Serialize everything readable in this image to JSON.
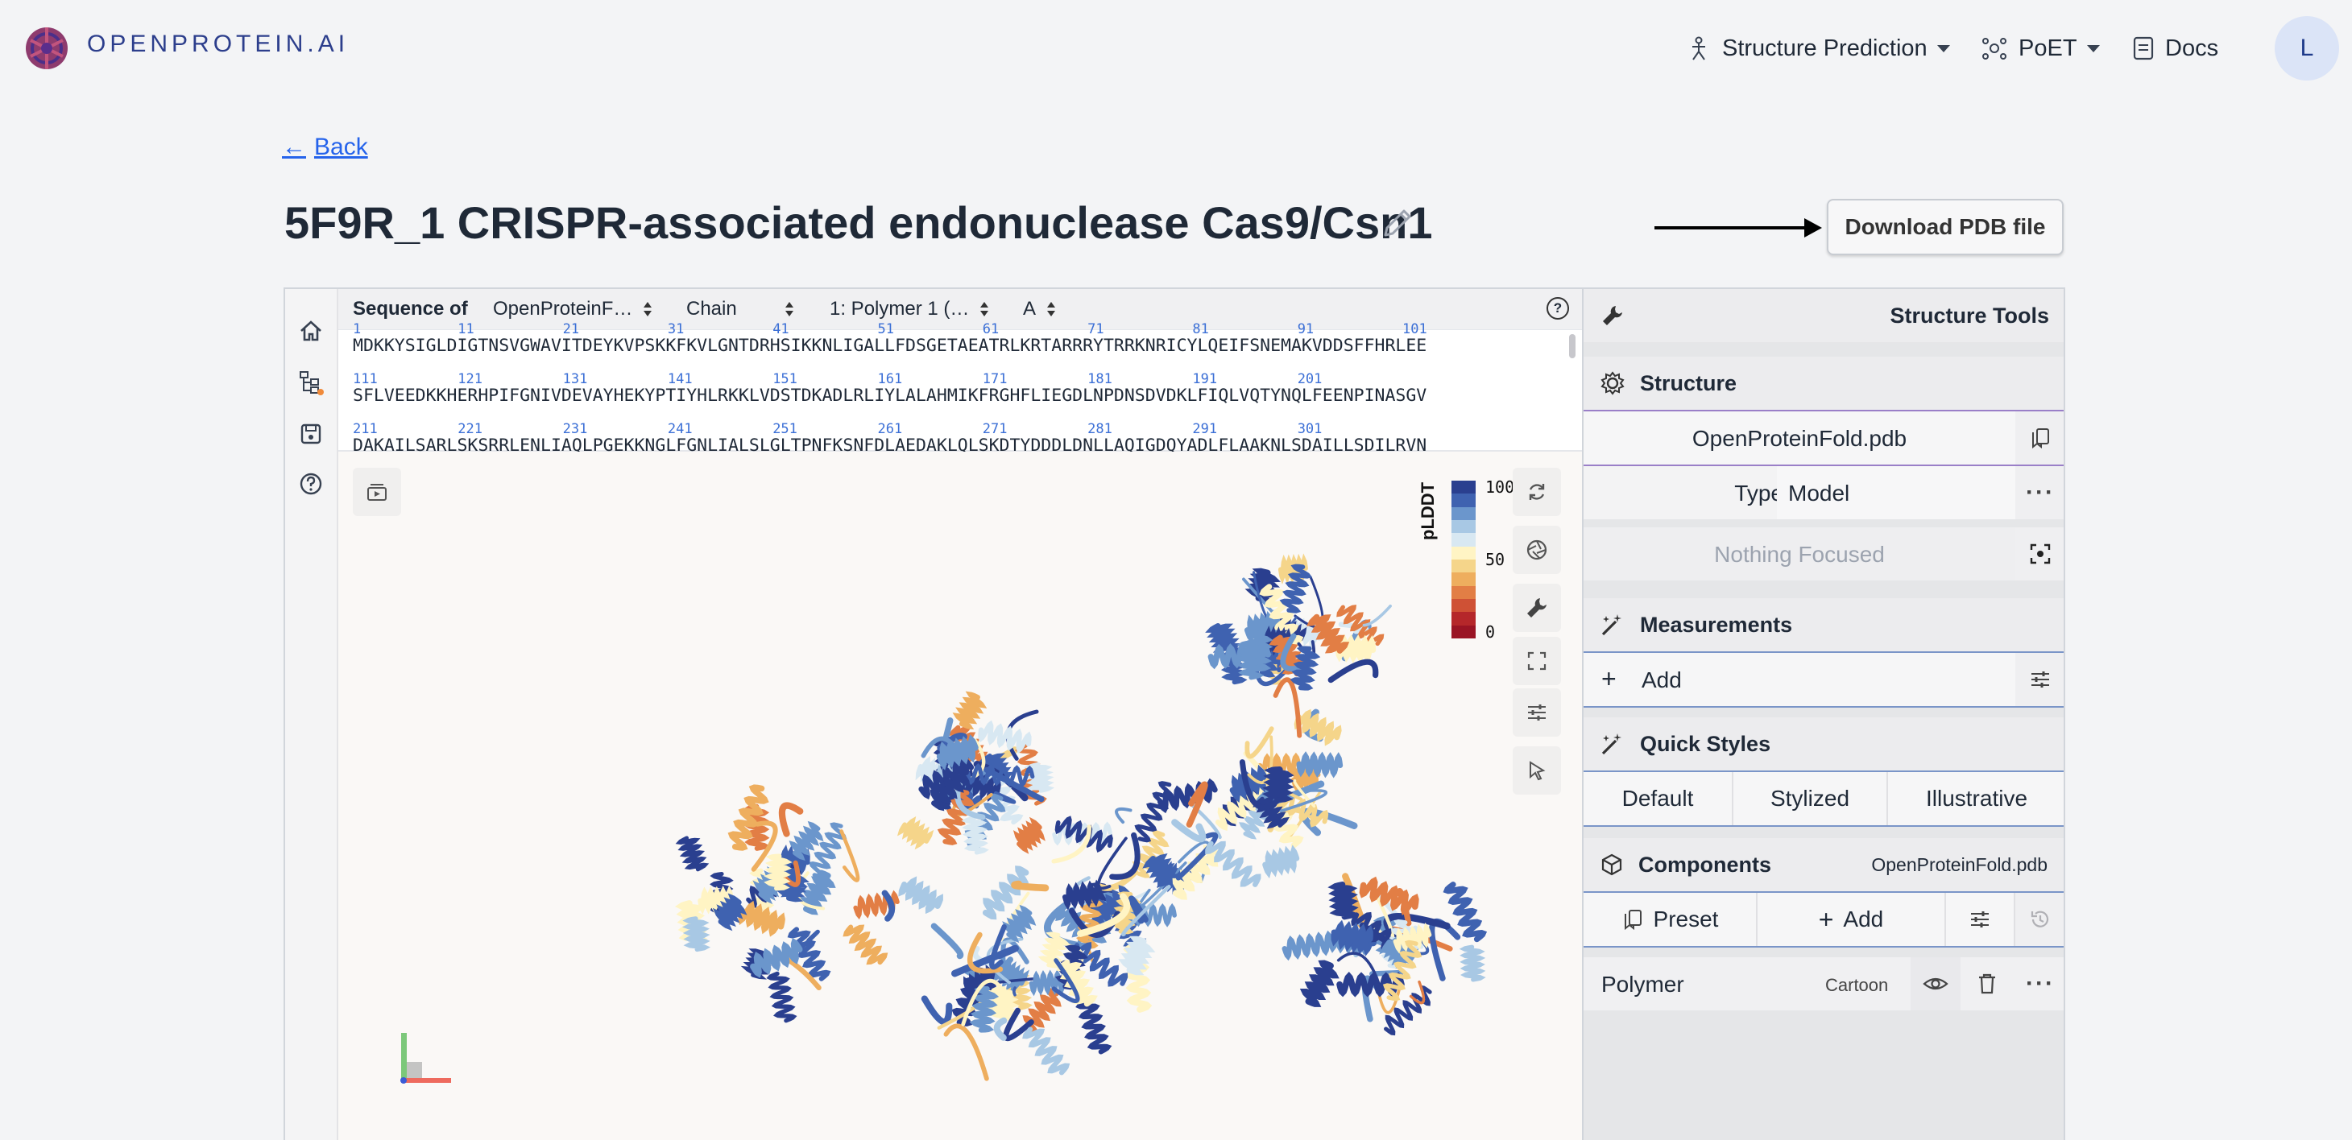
{
  "brand": {
    "name": "OPENPROTEIN.AI"
  },
  "nav": {
    "items": [
      {
        "label": "Structure Prediction",
        "icon": "protein-fold-icon",
        "dropdown": true
      },
      {
        "label": "PoET",
        "icon": "molecule-icon",
        "dropdown": true
      },
      {
        "label": "Docs",
        "icon": "docs-icon",
        "dropdown": false
      }
    ],
    "avatar_initial": "L"
  },
  "header": {
    "back_label": "Back",
    "back_arrow": "←",
    "title": "5F9R_1 CRISPR-associated endonuclease Cas9/Csn1",
    "download_label": "Download PDB file"
  },
  "sequence": {
    "heading": "Sequence of",
    "entry_select": "OpenProteinF…",
    "chain_select": "Chain",
    "polymer_select": "1: Polymer 1 (…",
    "chain_id_select": "A",
    "help": "?",
    "lines": [
      {
        "text": "MDKKYSIGLDIGTNSVGWAVITDEYKVPSKKFKVLGNTDRHSIKKNLIGALLFDSGETAEATRLKRTARRRYTRRKNRICYLQEIFSNEMAKVDDSFFHRLEE",
        "numbers": [
          "1",
          "11",
          "21",
          "31",
          "41",
          "51",
          "61",
          "71",
          "81",
          "91",
          "101"
        ]
      },
      {
        "text": "SFLVEEDKKHERHPIFGNIVDEVAYHEKYPTIYHLRKKLVDSTDKADLRLIYLALAHMIKFRGHFLIEGDLNPDNSDVDKLFIQLVQTYNQLFEENPINASGV",
        "numbers": [
          "111",
          "121",
          "131",
          "141",
          "151",
          "161",
          "171",
          "181",
          "191",
          "201"
        ]
      },
      {
        "text": "DAKAILSARLSKSRRLENLIAQLPGEKKNGLFGNLIALSLGLTPNFKSNFDLAEDAKLQLSKDTYDDDLDNLLAQIGDQYADLFLAAKNLSDAILLSDILRVN",
        "numbers": [
          "211",
          "221",
          "231",
          "241",
          "251",
          "261",
          "271",
          "281",
          "291",
          "301"
        ]
      }
    ]
  },
  "legend": {
    "title": "pLDDT",
    "labels": [
      "100",
      "50",
      "0"
    ],
    "colors": [
      "#2a3f8f",
      "#3f62b0",
      "#6b96cc",
      "#a8c8e4",
      "#d8e8f2",
      "#fff4c4",
      "#f5d58a",
      "#eeae5e",
      "#e27e45",
      "#cf5135",
      "#b5272a",
      "#9a1424"
    ]
  },
  "panel": {
    "title": "Structure Tools",
    "structure": {
      "heading": "Structure",
      "file": "OpenProteinFold.pdb",
      "type_label": "Type",
      "type_value": "Model",
      "focus": "Nothing Focused"
    },
    "measurements": {
      "heading": "Measurements",
      "add": "Add"
    },
    "quick_styles": {
      "heading": "Quick Styles",
      "options": [
        "Default",
        "Stylized",
        "Illustrative"
      ]
    },
    "components": {
      "heading": "Components",
      "file": "OpenProteinFold.pdb",
      "preset": "Preset",
      "add": "Add",
      "polymer": "Polymer",
      "repr": "Cartoon"
    }
  },
  "colors": {
    "accent": "#2563eb",
    "brand": "#2c3e8c"
  }
}
